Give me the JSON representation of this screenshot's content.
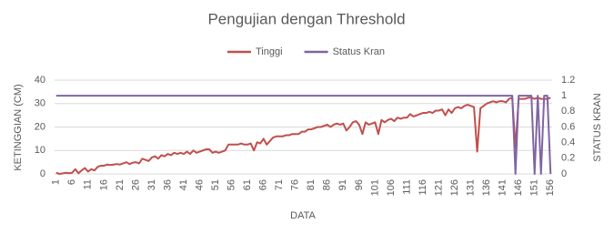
{
  "chart_data": {
    "type": "line",
    "title": "Pengujian dengan Threshold",
    "x_label": "DATA",
    "y_label": "KETINGGIAN (CM)",
    "y2_label": "STATUS KRAN",
    "categories": [
      1,
      null,
      null,
      null,
      null,
      6,
      null,
      null,
      null,
      null,
      11,
      null,
      null,
      null,
      null,
      16,
      null,
      null,
      null,
      null,
      21,
      null,
      null,
      null,
      null,
      26,
      null,
      null,
      null,
      null,
      31,
      null,
      null,
      null,
      null,
      36,
      null,
      null,
      null,
      null,
      41,
      null,
      null,
      null,
      null,
      46,
      null,
      null,
      null,
      null,
      51,
      null,
      null,
      null,
      null,
      56,
      null,
      null,
      null,
      null,
      61,
      null,
      null,
      null,
      null,
      66,
      null,
      null,
      null,
      null,
      71,
      null,
      null,
      null,
      null,
      76,
      null,
      null,
      null,
      null,
      81,
      null,
      null,
      null,
      null,
      86,
      null,
      null,
      null,
      null,
      91,
      null,
      null,
      null,
      null,
      96,
      null,
      null,
      null,
      null,
      101,
      null,
      null,
      null,
      null,
      106,
      null,
      null,
      null,
      null,
      111,
      null,
      null,
      null,
      null,
      116,
      null,
      null,
      null,
      null,
      121,
      null,
      null,
      null,
      null,
      126,
      null,
      null,
      null,
      null,
      131,
      null,
      null,
      null,
      null,
      136,
      null,
      null,
      null,
      null,
      141,
      null,
      null,
      null,
      null,
      146,
      null,
      null,
      null,
      null,
      151,
      null,
      null,
      null,
      null,
      156
    ],
    "series": [
      {
        "name": "Tinggi",
        "color": "#c0504d",
        "values": [
          0.5,
          0,
          0.2,
          0.5,
          0.3,
          0.5,
          2,
          0.3,
          1.5,
          2.5,
          1,
          2,
          1.5,
          3,
          3.5,
          3.5,
          4,
          3.8,
          4,
          4.2,
          4,
          4.5,
          5,
          4.2,
          4.8,
          5,
          4.5,
          6.5,
          6,
          5.5,
          7,
          7.5,
          6.5,
          8,
          7.5,
          8.5,
          8,
          9,
          8.5,
          9,
          8.5,
          9.5,
          8.5,
          10,
          9,
          9.5,
          10,
          10.5,
          10.5,
          9,
          9.5,
          9,
          9.5,
          10,
          12.5,
          12.5,
          12.5,
          12.5,
          13,
          12.5,
          12.5,
          13,
          10,
          13.5,
          13,
          15,
          12.5,
          14,
          15.5,
          16,
          16,
          16,
          16.5,
          16.5,
          17,
          17,
          17,
          18,
          18,
          19,
          19,
          19.5,
          20,
          20,
          20.5,
          21,
          20,
          21,
          21.5,
          21,
          21.5,
          18.5,
          20,
          22,
          22.5,
          21,
          17,
          22,
          21,
          21.5,
          22,
          17,
          23,
          22,
          23,
          23.5,
          22.5,
          24,
          23.5,
          24,
          24,
          25.5,
          24.5,
          25,
          25.5,
          26,
          26,
          26.5,
          26,
          27,
          27,
          27.5,
          25,
          27.5,
          26,
          28,
          28.5,
          28,
          29,
          29.5,
          29,
          28.5,
          9.5,
          28,
          29,
          30,
          30.5,
          31,
          30.5,
          31,
          31,
          30.5,
          32,
          32.5,
          11,
          32,
          32,
          32,
          32.5,
          32.5,
          32,
          32.5,
          32,
          32,
          32,
          32.5
        ]
      },
      {
        "name": "Status Kran",
        "color": "#8064a2",
        "axis": "y2",
        "values": [
          1,
          1,
          1,
          1,
          1,
          1,
          1,
          1,
          1,
          1,
          1,
          1,
          1,
          1,
          1,
          1,
          1,
          1,
          1,
          1,
          1,
          1,
          1,
          1,
          1,
          1,
          1,
          1,
          1,
          1,
          1,
          1,
          1,
          1,
          1,
          1,
          1,
          1,
          1,
          1,
          1,
          1,
          1,
          1,
          1,
          1,
          1,
          1,
          1,
          1,
          1,
          1,
          1,
          1,
          1,
          1,
          1,
          1,
          1,
          1,
          1,
          1,
          1,
          1,
          1,
          1,
          1,
          1,
          1,
          1,
          1,
          1,
          1,
          1,
          1,
          1,
          1,
          1,
          1,
          1,
          1,
          1,
          1,
          1,
          1,
          1,
          1,
          1,
          1,
          1,
          1,
          1,
          1,
          1,
          1,
          1,
          1,
          1,
          1,
          1,
          1,
          1,
          1,
          1,
          1,
          1,
          1,
          1,
          1,
          1,
          1,
          1,
          1,
          1,
          1,
          1,
          1,
          1,
          1,
          1,
          1,
          1,
          1,
          1,
          1,
          1,
          1,
          1,
          1,
          1,
          1,
          1,
          1,
          1,
          1,
          1,
          1,
          1,
          1,
          1,
          1,
          1,
          1,
          1,
          0,
          1,
          1,
          1,
          1,
          1,
          0,
          1,
          0,
          1,
          1,
          0
        ]
      }
    ],
    "ylim": [
      0,
      40
    ],
    "yticks": [
      0,
      10,
      20,
      30,
      40
    ],
    "y2lim": [
      0,
      1.2
    ],
    "y2ticks": [
      0,
      0.2,
      0.4,
      0.6,
      0.8,
      1,
      1.2
    ],
    "grid": true,
    "legend": "top"
  }
}
